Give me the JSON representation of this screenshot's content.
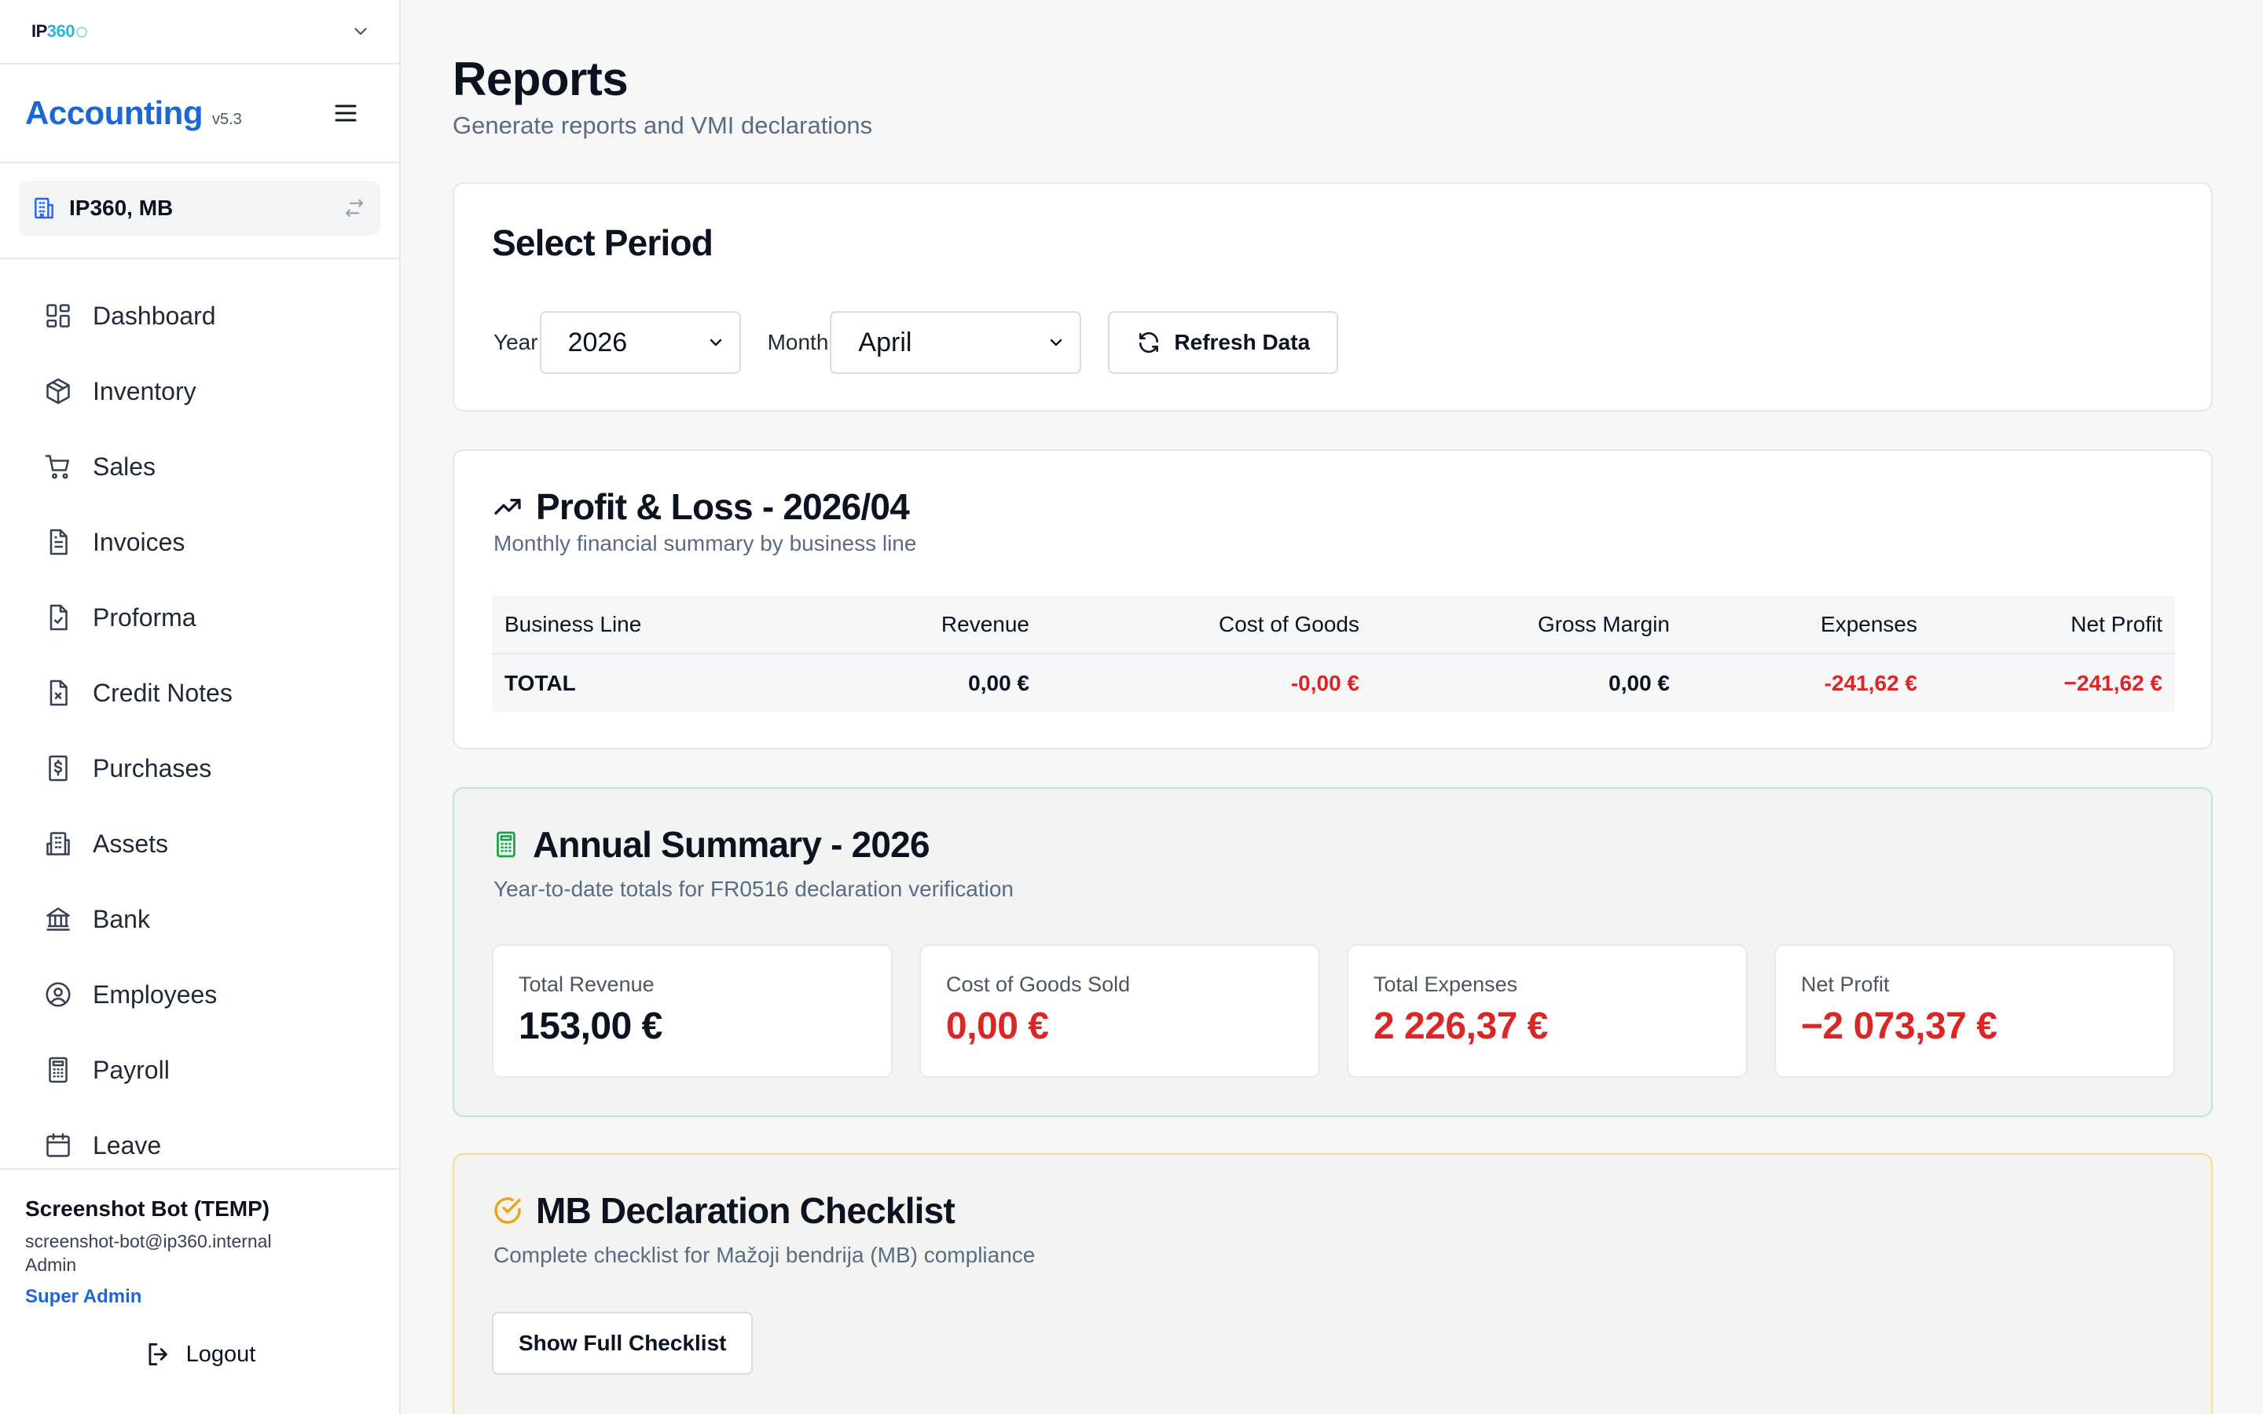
{
  "tenant": {
    "logo_prefix": "IP",
    "logo_accent": "360"
  },
  "brand": {
    "name": "Accounting",
    "version": "v5.3"
  },
  "company": {
    "name": "IP360, MB"
  },
  "nav": [
    {
      "label": "Dashboard",
      "icon": "dashboard-icon"
    },
    {
      "label": "Inventory",
      "icon": "box-icon"
    },
    {
      "label": "Sales",
      "icon": "cart-icon"
    },
    {
      "label": "Invoices",
      "icon": "document-icon"
    },
    {
      "label": "Proforma",
      "icon": "document-check-icon"
    },
    {
      "label": "Credit Notes",
      "icon": "document-x-icon"
    },
    {
      "label": "Purchases",
      "icon": "receipt-dollar-icon"
    },
    {
      "label": "Assets",
      "icon": "building-icon"
    },
    {
      "label": "Bank",
      "icon": "bank-icon"
    },
    {
      "label": "Employees",
      "icon": "user-circle-icon"
    },
    {
      "label": "Payroll",
      "icon": "calculator-icon"
    },
    {
      "label": "Leave",
      "icon": "calendar-icon"
    }
  ],
  "user": {
    "name": "Screenshot Bot (TEMP)",
    "email": "screenshot-bot@ip360.internal",
    "role": "Admin",
    "super": "Super Admin",
    "logout": "Logout"
  },
  "page": {
    "title": "Reports",
    "subtitle": "Generate reports and VMI declarations"
  },
  "period": {
    "title": "Select Period",
    "year_label": "Year",
    "year_value": "2026",
    "month_label": "Month",
    "month_value": "April",
    "refresh_label": "Refresh Data"
  },
  "pl": {
    "title": "Profit & Loss - 2026/04",
    "subtitle": "Monthly financial summary by business line",
    "columns": [
      "Business Line",
      "Revenue",
      "Cost of Goods",
      "Gross Margin",
      "Expenses",
      "Net Profit"
    ],
    "total_row": [
      "TOTAL",
      "0,00 €",
      "-0,00 €",
      "0,00 €",
      "-241,62 €",
      "−241,62 €"
    ]
  },
  "annual": {
    "title": "Annual Summary - 2026",
    "subtitle": "Year-to-date totals for FR0516 declaration verification",
    "stats": [
      {
        "label": "Total Revenue",
        "value": "153,00 €"
      },
      {
        "label": "Cost of Goods Sold",
        "value": "0,00 €"
      },
      {
        "label": "Total Expenses",
        "value": "2 226,37 €"
      },
      {
        "label": "Net Profit",
        "value": "−2 073,37 €"
      }
    ]
  },
  "checklist": {
    "title": "MB Declaration Checklist",
    "subtitle": "Complete checklist for Mažoji bendrija (MB) compliance",
    "button": "Show Full Checklist"
  },
  "colors": {
    "brand": "#1d66d6",
    "negative": "#dc2626",
    "annual_border": "#bfe6cb",
    "checklist_border": "#f6dc9a",
    "checklist_icon": "#e8a317",
    "annual_icon": "#16a34a"
  }
}
